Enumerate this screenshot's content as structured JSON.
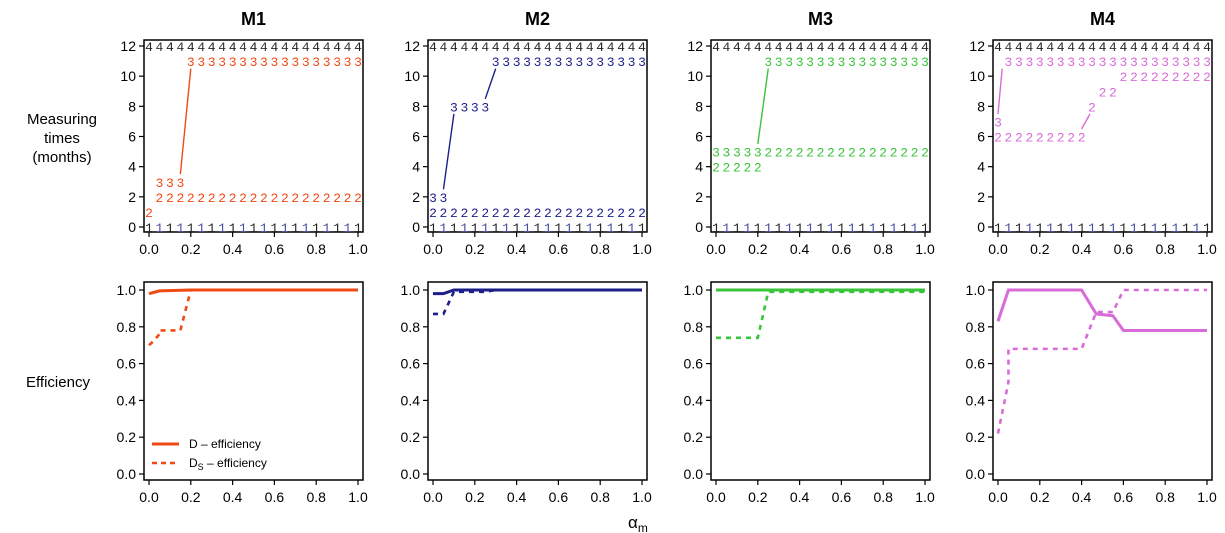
{
  "figure": {
    "xlabel": "α",
    "xlabel_sub": "m",
    "row_labels": {
      "top_line1": "Measuring",
      "top_line2": "times",
      "top_line3": "(months)",
      "bottom": "Efficiency"
    },
    "x_ticks": [
      "0.0",
      "0.2",
      "0.4",
      "0.6",
      "0.8",
      "1.0"
    ],
    "y_ticks_top": [
      "0",
      "2",
      "4",
      "6",
      "8",
      "10",
      "12"
    ],
    "y_ticks_bottom": [
      "0.0",
      "0.2",
      "0.4",
      "0.6",
      "0.8",
      "1.0"
    ],
    "legend": {
      "d_label": "D – efficiency",
      "ds_main": "D",
      "ds_sub": "S",
      "ds_rest": " – efficiency"
    }
  },
  "chart_data": [
    {
      "model": "M1",
      "title": "M1",
      "color": "#f04a14",
      "type": "line",
      "measuring_times": {
        "xlim": [
          0,
          1
        ],
        "ylim": [
          0,
          12
        ],
        "points": [
          {
            "label": "4",
            "y": 12,
            "x": [
              0.0,
              1.0
            ]
          },
          {
            "label": "1",
            "y": 0,
            "x": [
              0.0,
              1.0
            ]
          },
          {
            "label": "2",
            "y": 1,
            "x": [
              0.0,
              0.0
            ]
          },
          {
            "label": "2",
            "y": 2,
            "x": [
              0.05,
              1.0
            ]
          },
          {
            "label": "3",
            "y": 3,
            "x": [
              0.05,
              0.15
            ]
          },
          {
            "label": "3",
            "y": 11,
            "x": [
              0.2,
              1.0
            ]
          }
        ],
        "connectors": [
          {
            "x1": 0.15,
            "y1": 3.5,
            "x2": 0.2,
            "y2": 10.5
          }
        ]
      },
      "efficiency": {
        "xlim": [
          0,
          1
        ],
        "ylim": [
          0,
          1
        ],
        "D": {
          "x": [
            0,
            0.05,
            0.2,
            1.0
          ],
          "y": [
            0.98,
            0.995,
            1.0,
            1.0
          ]
        },
        "DS": {
          "x": [
            0,
            0.02,
            0.05,
            0.05,
            0.15,
            0.2,
            1.0
          ],
          "y": [
            0.7,
            0.72,
            0.76,
            0.78,
            0.78,
            1.0,
            1.0
          ]
        },
        "show_legend": true
      }
    },
    {
      "model": "M2",
      "title": "M2",
      "color": "#1c1f8a",
      "type": "line",
      "measuring_times": {
        "xlim": [
          0,
          1
        ],
        "ylim": [
          0,
          12
        ],
        "points": [
          {
            "label": "4",
            "y": 12,
            "x": [
              0.0,
              1.0
            ]
          },
          {
            "label": "1",
            "y": 0,
            "x": [
              0.0,
              1.0
            ]
          },
          {
            "label": "2",
            "y": 1,
            "x": [
              0.0,
              1.0
            ]
          },
          {
            "label": "3",
            "y": 2,
            "x": [
              0.0,
              0.05
            ]
          },
          {
            "label": "3",
            "y": 8,
            "x": [
              0.1,
              0.25
            ]
          },
          {
            "label": "3",
            "y": 11,
            "x": [
              0.3,
              1.0
            ]
          }
        ],
        "connectors": [
          {
            "x1": 0.05,
            "y1": 2.5,
            "x2": 0.1,
            "y2": 7.5
          },
          {
            "x1": 0.25,
            "y1": 8.5,
            "x2": 0.3,
            "y2": 10.5
          }
        ]
      },
      "efficiency": {
        "xlim": [
          0,
          1
        ],
        "ylim": [
          0,
          1
        ],
        "D": {
          "x": [
            0,
            0.05,
            0.1,
            1.0
          ],
          "y": [
            0.98,
            0.98,
            1.0,
            1.0
          ]
        },
        "DS": {
          "x": [
            0,
            0.05,
            0.1,
            0.25,
            0.3
          ],
          "y": [
            0.87,
            0.87,
            0.99,
            0.99,
            1.0
          ]
        },
        "show_legend": false
      }
    },
    {
      "model": "M3",
      "title": "M3",
      "color": "#3ac43a",
      "type": "line",
      "measuring_times": {
        "xlim": [
          0,
          1
        ],
        "ylim": [
          0,
          12
        ],
        "points": [
          {
            "label": "4",
            "y": 12,
            "x": [
              0.0,
              1.0
            ]
          },
          {
            "label": "1",
            "y": 0,
            "x": [
              0.0,
              1.0
            ]
          },
          {
            "label": "2",
            "y": 4,
            "x": [
              0.0,
              0.2
            ]
          },
          {
            "label": "3",
            "y": 5,
            "x": [
              0.0,
              0.2
            ]
          },
          {
            "label": "2",
            "y": 5,
            "x": [
              0.25,
              1.0
            ]
          },
          {
            "label": "3",
            "y": 11,
            "x": [
              0.25,
              1.0
            ]
          }
        ],
        "connectors": [
          {
            "x1": 0.2,
            "y1": 5.5,
            "x2": 0.25,
            "y2": 10.5
          }
        ]
      },
      "efficiency": {
        "xlim": [
          0,
          1
        ],
        "ylim": [
          0,
          1
        ],
        "D": {
          "x": [
            0,
            1.0
          ],
          "y": [
            1.0,
            1.0
          ]
        },
        "DS": {
          "x": [
            0,
            0.2,
            0.25,
            1.0
          ],
          "y": [
            0.74,
            0.74,
            0.99,
            0.99
          ]
        },
        "show_legend": false
      }
    },
    {
      "model": "M4",
      "title": "M4",
      "color": "#d96bd9",
      "type": "line",
      "measuring_times": {
        "xlim": [
          0,
          1
        ],
        "ylim": [
          0,
          12
        ],
        "points": [
          {
            "label": "4",
            "y": 12,
            "x": [
              0.0,
              1.0
            ]
          },
          {
            "label": "1",
            "y": 0,
            "x": [
              0.0,
              1.0
            ]
          },
          {
            "label": "2",
            "y": 6,
            "x": [
              0.0,
              0.4
            ]
          },
          {
            "label": "3",
            "y": 7,
            "x": [
              0.0,
              0.0
            ]
          },
          {
            "label": "3",
            "y": 11,
            "x": [
              0.05,
              1.0
            ]
          },
          {
            "label": "2",
            "y": 8,
            "x": [
              0.45,
              0.45
            ]
          },
          {
            "label": "2",
            "y": 9,
            "x": [
              0.5,
              0.55
            ]
          },
          {
            "label": "2",
            "y": 10,
            "x": [
              0.6,
              1.0
            ]
          }
        ],
        "connectors": [
          {
            "x1": 0.0,
            "y1": 7.5,
            "x2": 0.02,
            "y2": 10.5
          },
          {
            "x1": 0.4,
            "y1": 6.5,
            "x2": 0.44,
            "y2": 7.5
          }
        ]
      },
      "efficiency": {
        "xlim": [
          0,
          1
        ],
        "ylim": [
          0,
          1
        ],
        "D": {
          "x": [
            0,
            0.05,
            0.4,
            0.47,
            0.55,
            0.6,
            1.0
          ],
          "y": [
            0.83,
            1.0,
            1.0,
            0.87,
            0.86,
            0.78,
            0.78
          ]
        },
        "DS": {
          "x": [
            0,
            0.05,
            0.05,
            0.4,
            0.47,
            0.55,
            0.6,
            1.0
          ],
          "y": [
            0.22,
            0.5,
            0.68,
            0.68,
            0.88,
            0.88,
            1.0,
            1.0
          ]
        },
        "show_legend": false
      }
    }
  ]
}
